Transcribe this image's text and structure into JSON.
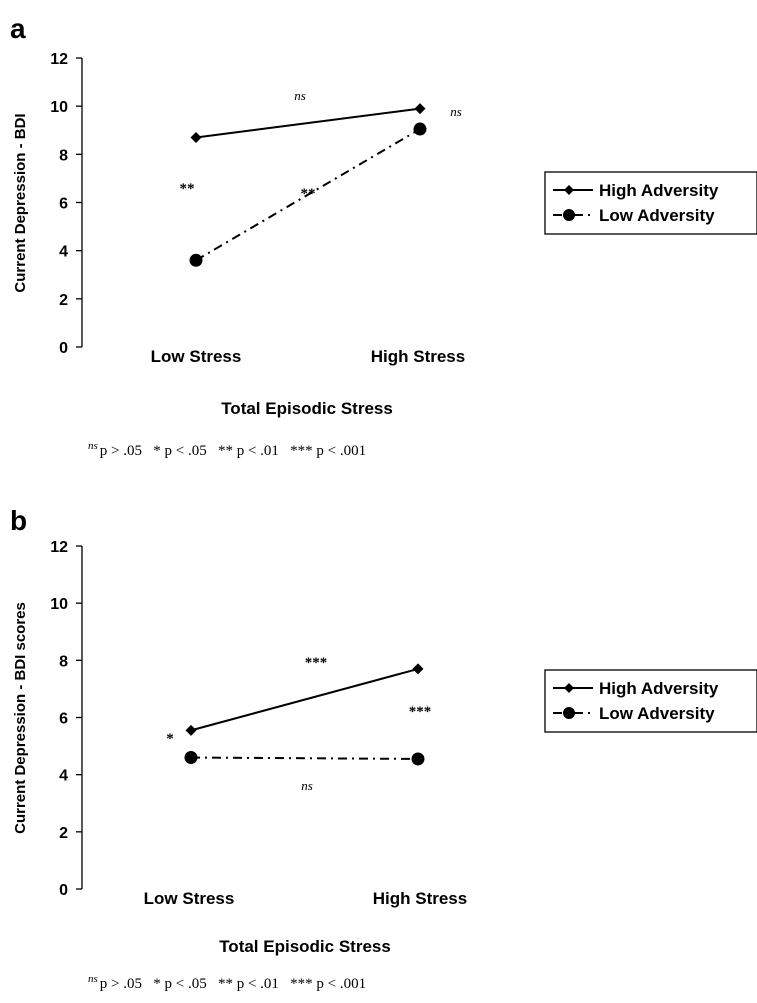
{
  "chart_data": [
    {
      "panel": "a",
      "type": "line",
      "categories": [
        "Low Stress",
        "High Stress"
      ],
      "series": [
        {
          "name": "High Adversity",
          "marker": "diamond",
          "dash": "solid",
          "values": [
            8.7,
            9.9
          ]
        },
        {
          "name": "Low Adversity",
          "marker": "circle",
          "dash": "dash-dot",
          "values": [
            3.6,
            9.05
          ]
        }
      ],
      "xlabel": "Total Episodic Stress",
      "ylabel": "Current Depression - BDI",
      "ylim": [
        0,
        12
      ],
      "yticks": [
        "0",
        "2",
        "4",
        "6",
        "8",
        "10",
        "12"
      ],
      "legend_position": "right",
      "annotations": [
        {
          "text": "ns",
          "style": "italic"
        },
        {
          "text": "ns",
          "style": "italic"
        },
        {
          "text": "**",
          "style": "bold"
        },
        {
          "text": "**",
          "style": "bold"
        }
      ],
      "footnote": {
        "ns_mark": "ns",
        "text": "p > .05   * p < .05   ** p < .01   *** p < .001"
      }
    },
    {
      "panel": "b",
      "type": "line",
      "categories": [
        "Low Stress",
        "High Stress"
      ],
      "series": [
        {
          "name": "High Adversity",
          "marker": "diamond",
          "dash": "solid",
          "values": [
            5.55,
            7.7
          ]
        },
        {
          "name": "Low Adversity",
          "marker": "circle",
          "dash": "dash-dot",
          "values": [
            4.6,
            4.55
          ]
        }
      ],
      "xlabel": "Total Episodic Stress",
      "ylabel": "Current Depression - BDI scores",
      "ylim": [
        0,
        12
      ],
      "yticks": [
        "0",
        "2",
        "4",
        "6",
        "8",
        "10",
        "12"
      ],
      "legend_position": "right",
      "annotations": [
        {
          "text": "***",
          "style": "bold"
        },
        {
          "text": "***",
          "style": "bold"
        },
        {
          "text": "*",
          "style": "bold"
        },
        {
          "text": "ns",
          "style": "italic"
        }
      ],
      "footnote": {
        "ns_mark": "ns",
        "text": "p > .05   * p < .05   ** p < .01   *** p < .001"
      }
    }
  ]
}
